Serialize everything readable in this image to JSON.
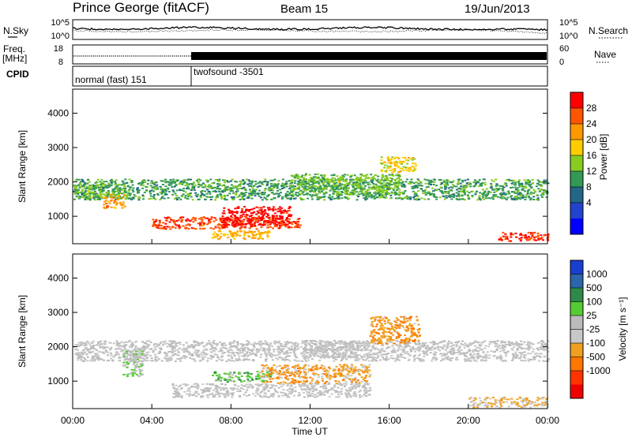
{
  "header": {
    "station": "Prince George (fitACF)",
    "beam": "Beam 15",
    "date": "19/Jun/2013"
  },
  "left_labels": {
    "nsky": "N.Sky",
    "freq": "Freq.",
    "freq_unit": "[MHz]",
    "cpid": "CPID"
  },
  "right_labels": {
    "nsearch": "N.Search",
    "nave": "Nave"
  },
  "noise_axis": {
    "left_ticks": [
      "10^5",
      "10^0"
    ],
    "right_ticks": [
      "10^5",
      "10^0"
    ]
  },
  "freq_axis": {
    "left_ticks": [
      "18",
      "8"
    ],
    "right_ticks": [
      "60",
      "0"
    ]
  },
  "cpid_segments": [
    {
      "label": "normal (fast) 151",
      "start_hour": 0,
      "end_hour": 6
    },
    {
      "label": "twofsound  -3501",
      "start_hour": 6,
      "end_hour": 24
    }
  ],
  "power_colorbar": {
    "title": "Power [dB]",
    "ticks": [
      "28",
      "24",
      "20",
      "16",
      "12",
      "8",
      "4"
    ],
    "colors": [
      "#ff0000",
      "#ff5500",
      "#ff9900",
      "#ffcc00",
      "#88cc22",
      "#339955",
      "#226688",
      "#2244cc",
      "#0000ff"
    ]
  },
  "velocity_colorbar": {
    "title": "Velocity [m s⁻¹]",
    "ticks": [
      "1000",
      "500",
      "100",
      "25",
      "-25",
      "-100",
      "-500",
      "-1000"
    ],
    "colors": [
      "#1a3fd0",
      "#2a66a8",
      "#2e8a4a",
      "#55cc33",
      "#bbbbbb",
      "#c8c8c8",
      "#f0a020",
      "#ff7700",
      "#ff3300",
      "#ee0000"
    ]
  },
  "chart_data": {
    "type": "heatmap",
    "xlabel": "Time UT",
    "x_ticks": [
      "00:00",
      "04:00",
      "08:00",
      "12:00",
      "16:00",
      "20:00",
      "00:00"
    ],
    "xlim": [
      0,
      24
    ],
    "ylabel": "Slant Range [km]",
    "y_ticks": [
      1000,
      2000,
      3000,
      4000
    ],
    "ylim": [
      200,
      4700
    ],
    "panels": [
      {
        "name": "power",
        "units": "dB",
        "color_range": [
          0,
          30
        ],
        "regions": [
          {
            "t0": 0,
            "t1": 24,
            "r0": 1500,
            "r1": 2100,
            "value": 12
          },
          {
            "t0": 0,
            "t1": 2.8,
            "r0": 1550,
            "r1": 1950,
            "value": 14
          },
          {
            "t0": 1.5,
            "t1": 2.6,
            "r0": 1250,
            "r1": 1650,
            "value": 22
          },
          {
            "t0": 4,
            "t1": 11.5,
            "r0": 650,
            "r1": 1000,
            "value": 26
          },
          {
            "t0": 7.5,
            "t1": 11,
            "r0": 750,
            "r1": 1300,
            "value": 29
          },
          {
            "t0": 7,
            "t1": 10,
            "r0": 350,
            "r1": 600,
            "value": 20
          },
          {
            "t0": 11,
            "t1": 16.5,
            "r0": 1650,
            "r1": 2250,
            "value": 14
          },
          {
            "t0": 15.5,
            "t1": 17.3,
            "r0": 2300,
            "r1": 2750,
            "value": 18
          },
          {
            "t0": 21.5,
            "t1": 24,
            "r0": 300,
            "r1": 550,
            "value": 27
          }
        ]
      },
      {
        "name": "velocity",
        "units": "m/s",
        "color_range": [
          -1000,
          1000
        ],
        "regions": [
          {
            "t0": 0,
            "t1": 24,
            "r0": 1600,
            "r1": 2200,
            "value": 0
          },
          {
            "t0": 5,
            "t1": 15,
            "r0": 550,
            "r1": 950,
            "value": 0
          },
          {
            "t0": 2.5,
            "t1": 3.5,
            "r0": 1150,
            "r1": 1900,
            "value": 150
          },
          {
            "t0": 7,
            "t1": 10,
            "r0": 1000,
            "r1": 1300,
            "value": 300
          },
          {
            "t0": 9.5,
            "t1": 15,
            "r0": 950,
            "r1": 1500,
            "value": -300
          },
          {
            "t0": 15,
            "t1": 17.5,
            "r0": 2100,
            "r1": 2900,
            "value": -350
          },
          {
            "t0": 11.5,
            "t1": 15,
            "r0": 1700,
            "r1": 2200,
            "value": 0
          },
          {
            "t0": 20,
            "t1": 24,
            "r0": 250,
            "r1": 550,
            "value": -200
          }
        ]
      }
    ]
  }
}
